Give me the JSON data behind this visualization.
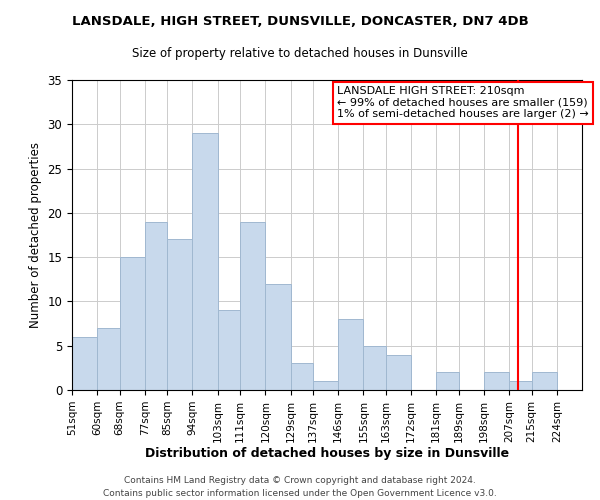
{
  "title": "LANSDALE, HIGH STREET, DUNSVILLE, DONCASTER, DN7 4DB",
  "subtitle": "Size of property relative to detached houses in Dunsville",
  "xlabel": "Distribution of detached houses by size in Dunsville",
  "ylabel": "Number of detached properties",
  "bin_labels": [
    "51sqm",
    "60sqm",
    "68sqm",
    "77sqm",
    "85sqm",
    "94sqm",
    "103sqm",
    "111sqm",
    "120sqm",
    "129sqm",
    "137sqm",
    "146sqm",
    "155sqm",
    "163sqm",
    "172sqm",
    "181sqm",
    "189sqm",
    "198sqm",
    "207sqm",
    "215sqm",
    "224sqm"
  ],
  "bin_edges": [
    51,
    60,
    68,
    77,
    85,
    94,
    103,
    111,
    120,
    129,
    137,
    146,
    155,
    163,
    172,
    181,
    189,
    198,
    207,
    215,
    224
  ],
  "bar_heights": [
    6,
    7,
    15,
    19,
    17,
    29,
    9,
    19,
    12,
    3,
    1,
    8,
    5,
    4,
    0,
    2,
    0,
    2,
    1,
    2,
    0
  ],
  "bar_color": "#c8d9ec",
  "bar_edge_color": "#a0b8d0",
  "grid_color": "#cccccc",
  "reference_line_x": 210,
  "reference_line_color": "red",
  "annotation_line1": "LANSDALE HIGH STREET: 210sqm",
  "annotation_line2": "← 99% of detached houses are smaller (159)",
  "annotation_line3": "1% of semi-detached houses are larger (2) →",
  "ylim": [
    0,
    35
  ],
  "yticks": [
    0,
    5,
    10,
    15,
    20,
    25,
    30,
    35
  ],
  "xlim_min": 51,
  "xlim_max": 233,
  "footer_line1": "Contains HM Land Registry data © Crown copyright and database right 2024.",
  "footer_line2": "Contains public sector information licensed under the Open Government Licence v3.0."
}
